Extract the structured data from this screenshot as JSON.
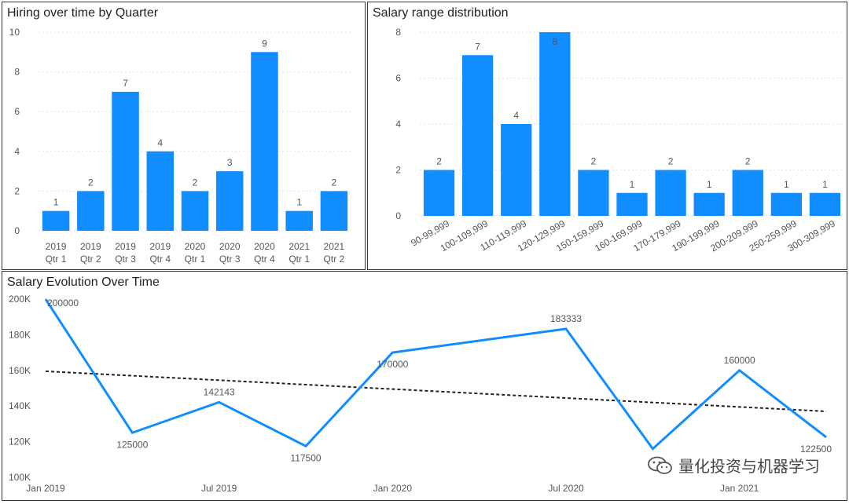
{
  "chart_data": [
    {
      "type": "bar",
      "title": "Hiring over time by Quarter",
      "categories": [
        "2019 Qtr 1",
        "2019 Qtr 2",
        "2019 Qtr 3",
        "2019 Qtr 4",
        "2020 Qtr 1",
        "2020 Qtr 3",
        "2020 Qtr 4",
        "2021 Qtr 1",
        "2021 Qtr 2"
      ],
      "category_lines": [
        [
          "2019",
          "Qtr 1"
        ],
        [
          "2019",
          "Qtr 2"
        ],
        [
          "2019",
          "Qtr 3"
        ],
        [
          "2019",
          "Qtr 4"
        ],
        [
          "2020",
          "Qtr 1"
        ],
        [
          "2020",
          "Qtr 3"
        ],
        [
          "2020",
          "Qtr 4"
        ],
        [
          "2021",
          "Qtr 1"
        ],
        [
          "2021",
          "Qtr 2"
        ]
      ],
      "values": [
        1,
        2,
        7,
        4,
        2,
        3,
        9,
        1,
        2
      ],
      "ylim": [
        0,
        10
      ],
      "yticks": [
        0,
        2,
        4,
        6,
        8,
        10
      ],
      "color": "#118DFF",
      "grid": true
    },
    {
      "type": "bar",
      "title": "Salary range distribution",
      "categories": [
        "90-99,999",
        "100-109,999",
        "110-119,999",
        "120-129,999",
        "150-159,999",
        "160-169,999",
        "170-179,999",
        "190-199,999",
        "200-209,999",
        "250-259,999",
        "300-309,999"
      ],
      "values": [
        2,
        7,
        4,
        8,
        2,
        1,
        2,
        1,
        2,
        1,
        1
      ],
      "ylim": [
        0,
        8
      ],
      "yticks": [
        0,
        2,
        4,
        6,
        8
      ],
      "color": "#118DFF",
      "grid": true
    },
    {
      "type": "line",
      "title": "Salary Evolution Over Time",
      "series": [
        {
          "x": [
            "2019-01",
            "2019-04",
            "2019-07",
            "2019-10",
            "2020-01",
            "2020-07",
            "2020-10",
            "2021-01",
            "2021-04"
          ],
          "values": [
            200000,
            125000,
            142143,
            117500,
            170000,
            183333,
            116000,
            160000,
            122500
          ],
          "labels": [
            "200000",
            "125000",
            "142143",
            "117500",
            "170000",
            "183333",
            "",
            "160000",
            "122500"
          ],
          "color": "#118DFF"
        }
      ],
      "trendline": {
        "start": 159500,
        "end": 137000,
        "color": "#222222",
        "style": "dashed"
      },
      "xticks": [
        {
          "x": "2019-01",
          "label": "Jan 2019"
        },
        {
          "x": "2019-07",
          "label": "Jul 2019"
        },
        {
          "x": "2020-01",
          "label": "Jan 2020"
        },
        {
          "x": "2020-07",
          "label": "Jul 2020"
        },
        {
          "x": "2021-01",
          "label": "Jan 2021"
        }
      ],
      "xrange": [
        "2019-01",
        "2021-04"
      ],
      "ylim": [
        100000,
        200000
      ],
      "yticks": [
        {
          "value": 100000,
          "label": "100K"
        },
        {
          "value": 120000,
          "label": "120K"
        },
        {
          "value": 140000,
          "label": "140K"
        },
        {
          "value": 160000,
          "label": "160K"
        },
        {
          "value": 180000,
          "label": "180K"
        },
        {
          "value": 200000,
          "label": "200K"
        }
      ],
      "grid": false
    }
  ],
  "watermark": {
    "text": "量化投资与机器学习",
    "icon": "wechat-icon"
  }
}
